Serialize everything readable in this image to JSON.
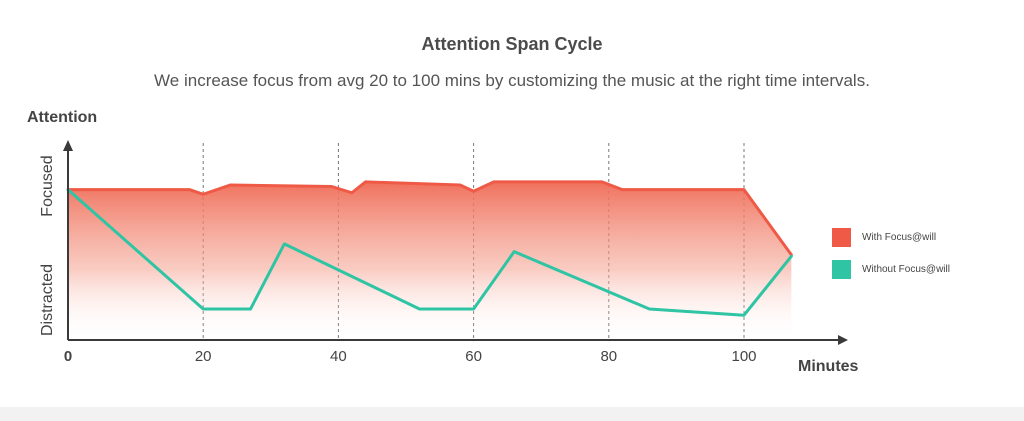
{
  "chart_data": {
    "type": "area",
    "title": "Attention Span Cycle",
    "subtitle": "We increase focus from avg 20 to 100 mins by customizing the music at the right time intervals.",
    "xlabel": "Minutes",
    "ylabel": "Attention",
    "y_ticks": [
      "Distracted",
      "Focused"
    ],
    "x_ticks": [
      0,
      20,
      40,
      60,
      80,
      100
    ],
    "xlim": [
      0,
      115
    ],
    "ylim": [
      0,
      1.1
    ],
    "vertical_grid": [
      20,
      40,
      60,
      80,
      100
    ],
    "series": [
      {
        "name": "With Focus@will",
        "color": "#ef5a46",
        "fill": "gradient",
        "x": [
          0,
          18,
          20,
          24,
          39,
          42,
          44,
          58,
          60,
          63,
          79,
          82,
          100,
          107
        ],
        "y": [
          0.97,
          0.97,
          0.94,
          1.0,
          0.99,
          0.95,
          1.02,
          1.0,
          0.96,
          1.02,
          1.02,
          0.97,
          0.97,
          0.55
        ]
      },
      {
        "name": "Without Focus@will",
        "color": "#2ec4a4",
        "x": [
          0,
          20,
          27,
          32,
          52,
          60,
          66,
          86,
          100,
          107
        ],
        "y": [
          0.97,
          0.2,
          0.2,
          0.62,
          0.2,
          0.2,
          0.57,
          0.2,
          0.16,
          0.54
        ]
      }
    ]
  }
}
